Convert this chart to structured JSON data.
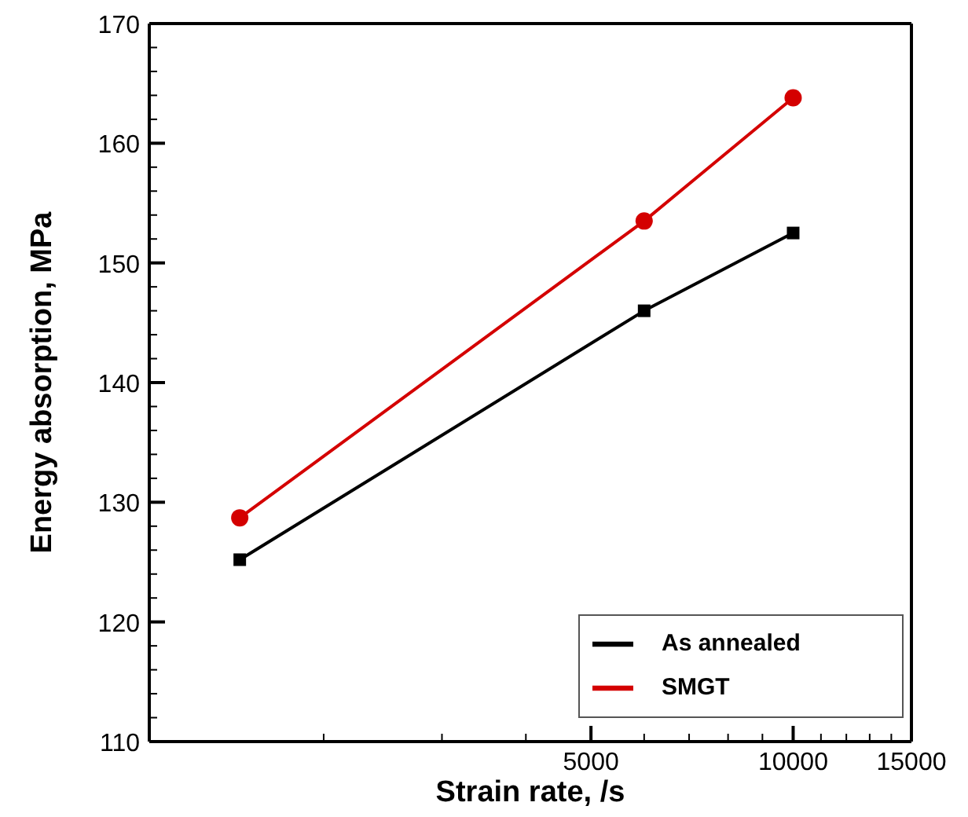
{
  "chart_data": {
    "type": "line",
    "xlabel": "Strain rate, /s",
    "ylabel": "Energy absorption, MPa",
    "log": "x",
    "x": [
      1500,
      6000,
      10000
    ],
    "series": [
      {
        "name": "As annealed",
        "color": "#000000",
        "marker": "square",
        "values": [
          125.2,
          146.0,
          152.5
        ]
      },
      {
        "name": "SMGT",
        "color": "#d40000",
        "marker": "circle",
        "values": [
          128.7,
          153.5,
          163.8
        ]
      }
    ],
    "xlim": [
      1100,
      15000
    ],
    "xticks": [
      {
        "value": 2000,
        "label": null
      },
      {
        "value": 3000,
        "label": null
      },
      {
        "value": 4000,
        "label": null
      },
      5000,
      {
        "value": 6000,
        "label": null
      },
      {
        "value": 7000,
        "label": null
      },
      {
        "value": 8000,
        "label": null
      },
      {
        "value": 9000,
        "label": null
      },
      10000,
      {
        "value": 11000,
        "label": null
      },
      {
        "value": 12000,
        "label": null
      },
      {
        "value": 13000,
        "label": null
      },
      {
        "value": 14000,
        "label": null
      },
      15000
    ],
    "ylim": [
      110,
      170
    ],
    "yticks": [
      110,
      {
        "value": 112,
        "label": null
      },
      {
        "value": 114,
        "label": null
      },
      {
        "value": 116,
        "label": null
      },
      {
        "value": 118,
        "label": null
      },
      120,
      {
        "value": 122,
        "label": null
      },
      {
        "value": 124,
        "label": null
      },
      {
        "value": 126,
        "label": null
      },
      {
        "value": 128,
        "label": null
      },
      130,
      {
        "value": 132,
        "label": null
      },
      {
        "value": 134,
        "label": null
      },
      {
        "value": 136,
        "label": null
      },
      {
        "value": 138,
        "label": null
      },
      140,
      {
        "value": 142,
        "label": null
      },
      {
        "value": 144,
        "label": null
      },
      {
        "value": 146,
        "label": null
      },
      {
        "value": 148,
        "label": null
      },
      150,
      {
        "value": 152,
        "label": null
      },
      {
        "value": 154,
        "label": null
      },
      {
        "value": 156,
        "label": null
      },
      {
        "value": 158,
        "label": null
      },
      160,
      {
        "value": 162,
        "label": null
      },
      {
        "value": 164,
        "label": null
      },
      {
        "value": 166,
        "label": null
      },
      {
        "value": 168,
        "label": null
      },
      170
    ],
    "grid": false,
    "legend": "bottom right",
    "line_style": "solid"
  }
}
